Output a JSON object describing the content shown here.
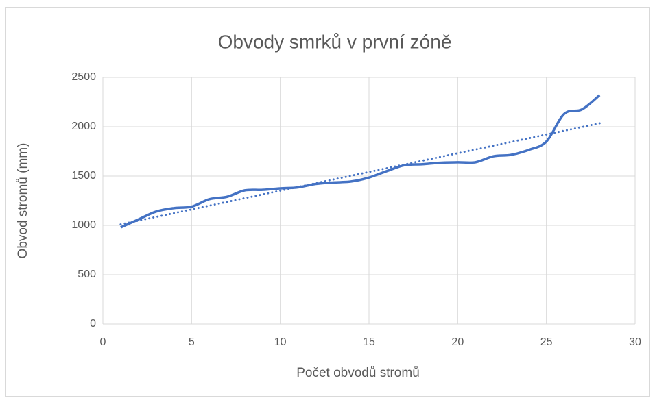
{
  "chart_data": {
    "type": "line",
    "title": "Obvody smrků v první zóně",
    "xlabel": "Počet obvodů stromů",
    "ylabel": "Obvod stromů (mm)",
    "x": [
      1,
      2,
      3,
      4,
      5,
      6,
      7,
      8,
      9,
      10,
      11,
      12,
      13,
      14,
      15,
      16,
      17,
      18,
      19,
      20,
      21,
      22,
      23,
      24,
      25,
      26,
      27,
      28
    ],
    "series": [
      {
        "color": "#4472c4",
        "values": [
          979,
          1060,
          1140,
          1175,
          1190,
          1265,
          1290,
          1355,
          1360,
          1375,
          1385,
          1420,
          1435,
          1445,
          1485,
          1550,
          1610,
          1620,
          1635,
          1640,
          1640,
          1700,
          1715,
          1765,
          1850,
          2130,
          2175,
          2320
        ]
      }
    ],
    "trendline": {
      "x": [
        1,
        28
      ],
      "values": [
        1010,
        2035
      ],
      "color": "#4472c4"
    },
    "xlim": [
      0,
      30
    ],
    "xticks": [
      0,
      5,
      10,
      15,
      20,
      25,
      30
    ],
    "ylim": [
      0,
      2500
    ],
    "yticks": [
      0,
      500,
      1000,
      1500,
      2000,
      2500
    ],
    "grid": true
  }
}
